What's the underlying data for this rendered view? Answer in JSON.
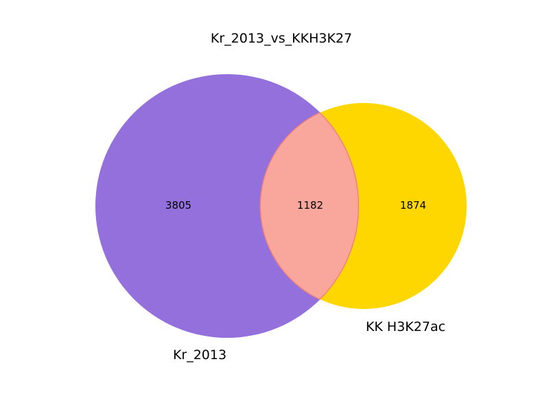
{
  "title": "Kr_2013_vs_KKH3K27",
  "sets": [
    {
      "name": "Kr_2013",
      "only_count": "3805",
      "color": "#9370db"
    },
    {
      "name": "KK H3K27ac",
      "only_count": "1874",
      "color": "#ffd700"
    }
  ],
  "intersection": {
    "count": "1182",
    "color": "#f9a79c",
    "edge_color": "#f08080"
  }
}
